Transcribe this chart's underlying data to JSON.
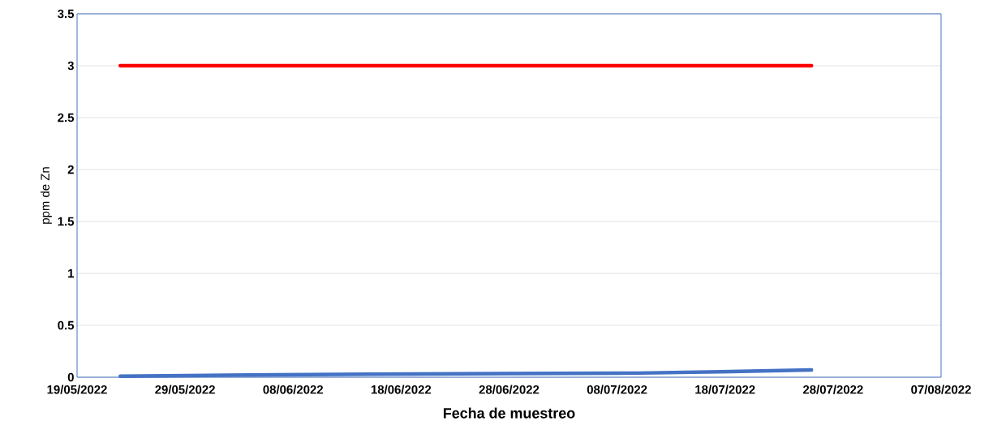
{
  "chart_data": {
    "type": "line",
    "xlabel": "Fecha de muestreo",
    "ylabel": "ppm de Zn",
    "xlim": [
      "2022-05-19",
      "2022-08-07"
    ],
    "xticks": [
      {
        "value": "2022-05-19",
        "label": "19/05/2022"
      },
      {
        "value": "2022-05-29",
        "label": "29/05/2022"
      },
      {
        "value": "2022-06-08",
        "label": "08/06/2022"
      },
      {
        "value": "2022-06-18",
        "label": "18/06/2022"
      },
      {
        "value": "2022-06-28",
        "label": "28/06/2022"
      },
      {
        "value": "2022-07-08",
        "label": "08/07/2022"
      },
      {
        "value": "2022-07-18",
        "label": "18/07/2022"
      },
      {
        "value": "2022-07-28",
        "label": "28/07/2022"
      },
      {
        "value": "2022-08-07",
        "label": "07/08/2022"
      }
    ],
    "ylim": [
      0,
      3.5
    ],
    "yticks": [
      0,
      0.5,
      1,
      1.5,
      2,
      2.5,
      3,
      3.5
    ],
    "grid": "y",
    "marker": "none",
    "line_style": "solid",
    "series": [
      {
        "color": "#4472c4",
        "x": [
          "2022-05-23",
          "2022-06-15",
          "2022-07-10",
          "2022-07-26"
        ],
        "values": [
          0.01,
          0.03,
          0.04,
          0.07
        ]
      },
      {
        "color": "#ff0000",
        "x": [
          "2022-05-23",
          "2022-07-26"
        ],
        "values": [
          3,
          3
        ]
      }
    ]
  }
}
